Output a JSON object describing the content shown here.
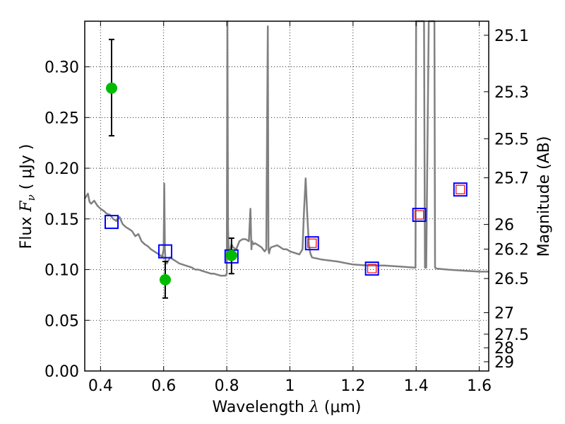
{
  "chart_data": {
    "type": "scatter",
    "xlabel": {
      "prefix": "Wavelength  ",
      "symbol": "λ",
      "unit": " (μm)"
    },
    "ylabel": {
      "prefix": "Flux  ",
      "symbol": "F",
      "subscript": "ν",
      "unit": "  ( μJy )"
    },
    "right_axis_label": "Magnitude (AB)",
    "xlim": [
      0.35,
      1.63
    ],
    "ylim": [
      0.0,
      0.345
    ],
    "x_ticks": [
      {
        "value": 0.4,
        "label": "0.4"
      },
      {
        "value": 0.6,
        "label": "0.6"
      },
      {
        "value": 0.8,
        "label": "0.8"
      },
      {
        "value": 1.0,
        "label": "1"
      },
      {
        "value": 1.2,
        "label": "1.2"
      },
      {
        "value": 1.4,
        "label": "1.4"
      },
      {
        "value": 1.6,
        "label": "1.6"
      }
    ],
    "y_ticks": [
      {
        "value": 0.0,
        "label": "0.00"
      },
      {
        "value": 0.05,
        "label": "0.05"
      },
      {
        "value": 0.1,
        "label": "0.10"
      },
      {
        "value": 0.15,
        "label": "0.15"
      },
      {
        "value": 0.2,
        "label": "0.20"
      },
      {
        "value": 0.25,
        "label": "0.25"
      },
      {
        "value": 0.3,
        "label": "0.30"
      }
    ],
    "right_ticks": [
      {
        "mag": 25.1,
        "label": "25.1"
      },
      {
        "mag": 25.3,
        "label": "25.3"
      },
      {
        "mag": 25.5,
        "label": "25.5"
      },
      {
        "mag": 25.7,
        "label": "25.7"
      },
      {
        "mag": 26.0,
        "label": "26"
      },
      {
        "mag": 26.2,
        "label": "26.2"
      },
      {
        "mag": 26.5,
        "label": "26.5"
      },
      {
        "mag": 27.0,
        "label": "27"
      },
      {
        "mag": 27.5,
        "label": "27.5"
      },
      {
        "mag": 28.0,
        "label": "28"
      },
      {
        "mag": 29.0,
        "label": "29"
      }
    ],
    "grid": true,
    "series": [
      {
        "kind": "line",
        "color": "#808080",
        "x": [
          0.35,
          0.36,
          0.365,
          0.37,
          0.38,
          0.39,
          0.4,
          0.41,
          0.42,
          0.43,
          0.44,
          0.45,
          0.46,
          0.47,
          0.48,
          0.49,
          0.5,
          0.51,
          0.52,
          0.53,
          0.54,
          0.55,
          0.56,
          0.57,
          0.58,
          0.59,
          0.595,
          0.6,
          0.602,
          0.604,
          0.606,
          0.61,
          0.62,
          0.63,
          0.64,
          0.65,
          0.66,
          0.67,
          0.68,
          0.69,
          0.7,
          0.71,
          0.72,
          0.73,
          0.74,
          0.75,
          0.76,
          0.77,
          0.78,
          0.79,
          0.795,
          0.8,
          0.802,
          0.804,
          0.807,
          0.81,
          0.815,
          0.82,
          0.83,
          0.84,
          0.85,
          0.86,
          0.87,
          0.875,
          0.878,
          0.88,
          0.885,
          0.89,
          0.9,
          0.91,
          0.92,
          0.925,
          0.93,
          0.932,
          0.934,
          0.937,
          0.94,
          0.95,
          0.96,
          0.97,
          0.98,
          0.99,
          1.0,
          1.02,
          1.03,
          1.04,
          1.045,
          1.05,
          1.055,
          1.06,
          1.065,
          1.07,
          1.1,
          1.15,
          1.2,
          1.25,
          1.3,
          1.35,
          1.398,
          1.4,
          1.403,
          1.42,
          1.425,
          1.428,
          1.432,
          1.44,
          1.45,
          1.455,
          1.458,
          1.46,
          1.465,
          1.5,
          1.55,
          1.6,
          1.63
        ],
        "y": [
          0.17,
          0.175,
          0.167,
          0.165,
          0.168,
          0.163,
          0.16,
          0.158,
          0.155,
          0.154,
          0.15,
          0.148,
          0.152,
          0.145,
          0.142,
          0.14,
          0.138,
          0.133,
          0.135,
          0.128,
          0.125,
          0.123,
          0.12,
          0.118,
          0.116,
          0.114,
          0.112,
          0.12,
          0.185,
          0.12,
          0.108,
          0.106,
          0.112,
          0.11,
          0.108,
          0.106,
          0.105,
          0.104,
          0.103,
          0.102,
          0.1,
          0.1,
          0.099,
          0.098,
          0.097,
          0.096,
          0.096,
          0.095,
          0.094,
          0.094,
          0.094,
          0.096,
          0.345,
          0.14,
          0.11,
          0.118,
          0.125,
          0.122,
          0.12,
          0.128,
          0.13,
          0.13,
          0.128,
          0.16,
          0.12,
          0.128,
          0.125,
          0.126,
          0.124,
          0.122,
          0.118,
          0.12,
          0.34,
          0.12,
          0.116,
          0.12,
          0.122,
          0.123,
          0.124,
          0.122,
          0.12,
          0.12,
          0.118,
          0.116,
          0.115,
          0.12,
          0.16,
          0.19,
          0.155,
          0.125,
          0.116,
          0.112,
          0.11,
          0.108,
          0.105,
          0.104,
          0.104,
          0.103,
          0.102,
          0.345,
          0.345,
          0.345,
          0.345,
          0.102,
          0.102,
          0.345,
          0.345,
          0.345,
          0.345,
          0.102,
          0.101,
          0.1,
          0.099,
          0.098,
          0.098
        ]
      },
      {
        "kind": "errorbar",
        "color": "#00bb00",
        "points": [
          {
            "x": 0.435,
            "y": 0.279,
            "yerr_low": 0.232,
            "yerr_high": 0.327
          },
          {
            "x": 0.605,
            "y": 0.09,
            "yerr_low": 0.072,
            "yerr_high": 0.108
          },
          {
            "x": 0.815,
            "y": 0.114,
            "yerr_low": 0.096,
            "yerr_high": 0.131
          }
        ]
      },
      {
        "kind": "square_outline",
        "color": "#0000ff",
        "x": [
          0.435,
          0.605,
          0.815,
          1.07,
          1.26,
          1.41,
          1.54
        ],
        "y": [
          0.147,
          0.118,
          0.113,
          0.126,
          0.101,
          0.154,
          0.179
        ]
      },
      {
        "kind": "square_outline_small",
        "color": "#ff0000",
        "x": [
          1.07,
          1.26,
          1.41,
          1.54
        ],
        "y": [
          0.126,
          0.101,
          0.154,
          0.179
        ]
      }
    ]
  }
}
